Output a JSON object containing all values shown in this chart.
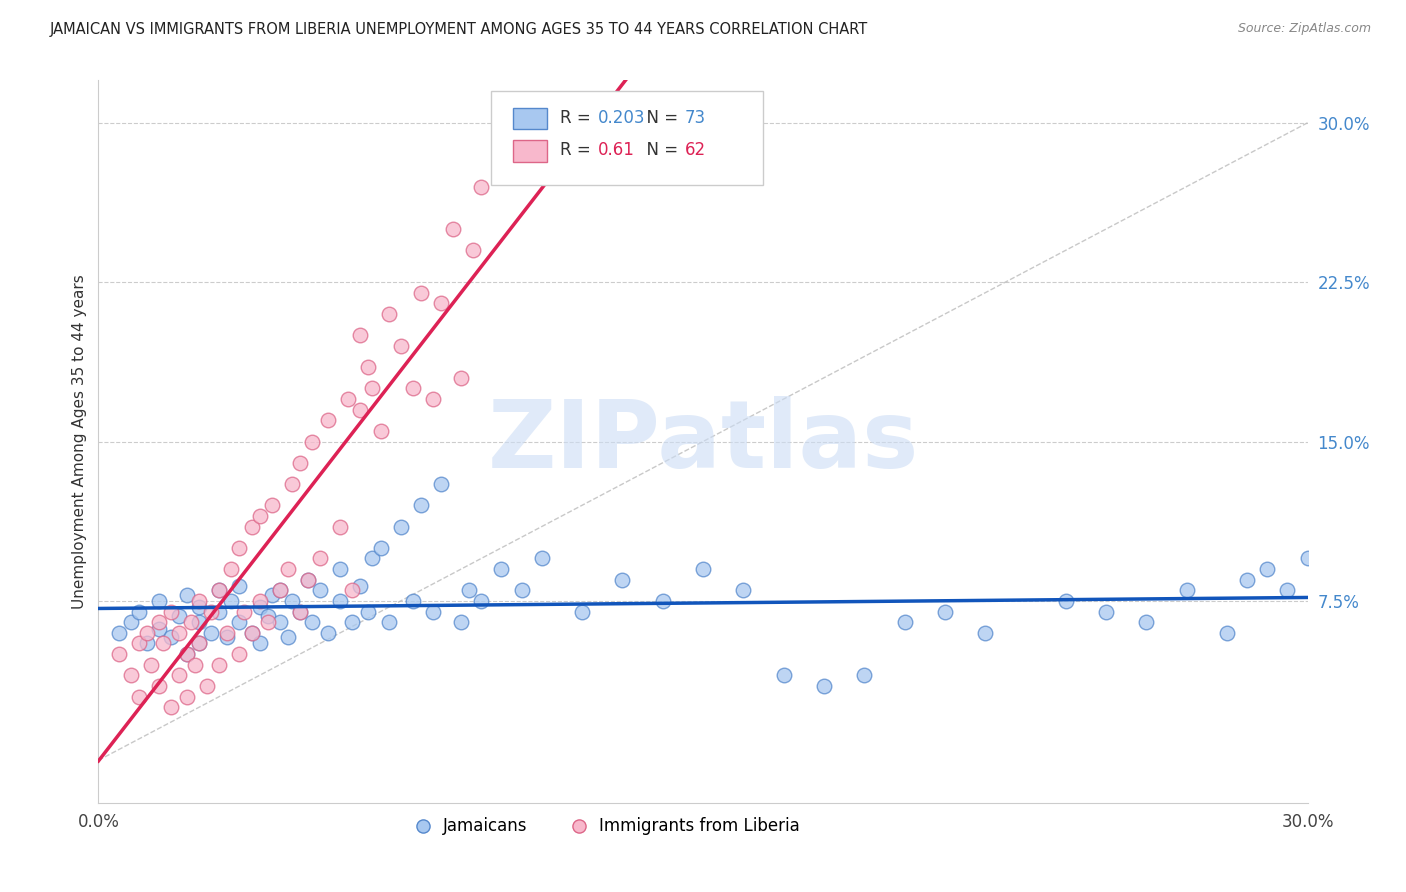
{
  "title": "JAMAICAN VS IMMIGRANTS FROM LIBERIA UNEMPLOYMENT AMONG AGES 35 TO 44 YEARS CORRELATION CHART",
  "source": "Source: ZipAtlas.com",
  "ylabel": "Unemployment Among Ages 35 to 44 years",
  "xmin": 0.0,
  "xmax": 0.3,
  "ymin": -0.02,
  "ymax": 0.32,
  "xtick_vals": [
    0.0,
    0.05,
    0.1,
    0.15,
    0.2,
    0.25,
    0.3
  ],
  "yticks_right": [
    0.075,
    0.15,
    0.225,
    0.3
  ],
  "ytick_labels_right": [
    "7.5%",
    "15.0%",
    "22.5%",
    "30.0%"
  ],
  "series1_label": "Jamaicans",
  "series1_color": "#a8c8f0",
  "series1_edge_color": "#5588cc",
  "series1_R": 0.203,
  "series1_N": 73,
  "series1_line_color": "#1155bb",
  "series2_label": "Immigrants from Liberia",
  "series2_color": "#f8b8cc",
  "series2_edge_color": "#dd6688",
  "series2_R": 0.61,
  "series2_N": 62,
  "series2_line_color": "#dd2255",
  "watermark": "ZIPatlas",
  "watermark_color": "#ccddf5",
  "jamaicans_x": [
    0.005,
    0.008,
    0.01,
    0.012,
    0.015,
    0.015,
    0.018,
    0.02,
    0.022,
    0.022,
    0.025,
    0.025,
    0.025,
    0.028,
    0.03,
    0.03,
    0.032,
    0.033,
    0.035,
    0.035,
    0.038,
    0.04,
    0.04,
    0.042,
    0.043,
    0.045,
    0.045,
    0.047,
    0.048,
    0.05,
    0.052,
    0.053,
    0.055,
    0.057,
    0.06,
    0.06,
    0.063,
    0.065,
    0.067,
    0.068,
    0.07,
    0.072,
    0.075,
    0.078,
    0.08,
    0.083,
    0.085,
    0.09,
    0.092,
    0.095,
    0.1,
    0.105,
    0.11,
    0.12,
    0.13,
    0.14,
    0.15,
    0.16,
    0.17,
    0.18,
    0.19,
    0.2,
    0.21,
    0.22,
    0.24,
    0.25,
    0.26,
    0.27,
    0.28,
    0.285,
    0.29,
    0.295,
    0.3
  ],
  "jamaicans_y": [
    0.06,
    0.065,
    0.07,
    0.055,
    0.062,
    0.075,
    0.058,
    0.068,
    0.05,
    0.078,
    0.065,
    0.072,
    0.055,
    0.06,
    0.07,
    0.08,
    0.058,
    0.075,
    0.065,
    0.082,
    0.06,
    0.072,
    0.055,
    0.068,
    0.078,
    0.065,
    0.08,
    0.058,
    0.075,
    0.07,
    0.085,
    0.065,
    0.08,
    0.06,
    0.075,
    0.09,
    0.065,
    0.082,
    0.07,
    0.095,
    0.1,
    0.065,
    0.11,
    0.075,
    0.12,
    0.07,
    0.13,
    0.065,
    0.08,
    0.075,
    0.09,
    0.08,
    0.095,
    0.07,
    0.085,
    0.075,
    0.09,
    0.08,
    0.04,
    0.035,
    0.04,
    0.065,
    0.07,
    0.06,
    0.075,
    0.07,
    0.065,
    0.08,
    0.06,
    0.085,
    0.09,
    0.08,
    0.095
  ],
  "liberia_x": [
    0.005,
    0.008,
    0.01,
    0.01,
    0.012,
    0.013,
    0.015,
    0.015,
    0.016,
    0.018,
    0.018,
    0.02,
    0.02,
    0.022,
    0.022,
    0.023,
    0.024,
    0.025,
    0.025,
    0.027,
    0.028,
    0.03,
    0.03,
    0.032,
    0.033,
    0.035,
    0.035,
    0.036,
    0.038,
    0.038,
    0.04,
    0.04,
    0.042,
    0.043,
    0.045,
    0.047,
    0.048,
    0.05,
    0.05,
    0.052,
    0.053,
    0.055,
    0.057,
    0.06,
    0.062,
    0.063,
    0.065,
    0.065,
    0.067,
    0.068,
    0.07,
    0.072,
    0.075,
    0.078,
    0.08,
    0.083,
    0.085,
    0.088,
    0.09,
    0.093,
    0.095,
    0.1
  ],
  "liberia_y": [
    0.05,
    0.04,
    0.055,
    0.03,
    0.06,
    0.045,
    0.035,
    0.065,
    0.055,
    0.025,
    0.07,
    0.04,
    0.06,
    0.05,
    0.03,
    0.065,
    0.045,
    0.055,
    0.075,
    0.035,
    0.07,
    0.045,
    0.08,
    0.06,
    0.09,
    0.05,
    0.1,
    0.07,
    0.11,
    0.06,
    0.075,
    0.115,
    0.065,
    0.12,
    0.08,
    0.09,
    0.13,
    0.07,
    0.14,
    0.085,
    0.15,
    0.095,
    0.16,
    0.11,
    0.17,
    0.08,
    0.165,
    0.2,
    0.185,
    0.175,
    0.155,
    0.21,
    0.195,
    0.175,
    0.22,
    0.17,
    0.215,
    0.25,
    0.18,
    0.24,
    0.27,
    0.29
  ]
}
